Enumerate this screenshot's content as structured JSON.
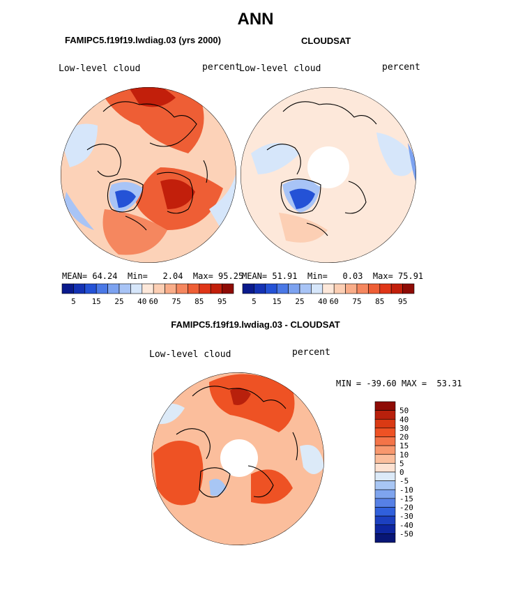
{
  "page": {
    "title": "ANN",
    "left_panel_title": "FAMIPC5.f19f19.lwdiag.03 (yrs 2000)",
    "right_panel_title": "CLOUDSAT",
    "diff_panel_title": "FAMIPC5.f19f19.lwdiag.03 - CLOUDSAT"
  },
  "chart_data": [
    {
      "type": "heatmap",
      "projection": "polar-stereographic-north",
      "title": "FAMIPC5.f19f19.lwdiag.03 (yrs 2000)",
      "left_label": "Low-level cloud",
      "right_label": "percent",
      "stats": {
        "mean_label": "MEAN=",
        "mean": "64.24",
        "min_label": "Min=",
        "min": "2.04",
        "max_label": "Max=",
        "max": "95.25"
      },
      "colorbar": {
        "orientation": "horizontal",
        "tick_labels": [
          "5",
          "15",
          "25",
          "40",
          "60",
          "75",
          "85",
          "95"
        ],
        "colors": [
          "#0a1a8c",
          "#1432b4",
          "#2452d6",
          "#4a78e6",
          "#7ca2f0",
          "#a8c4f6",
          "#d6e6fa",
          "#fde8da",
          "#fccfb4",
          "#f9ad89",
          "#f5875f",
          "#ee5e35",
          "#e03618",
          "#c21f0b",
          "#8e0b05"
        ]
      }
    },
    {
      "type": "heatmap",
      "projection": "polar-stereographic-north",
      "title": "CLOUDSAT",
      "left_label": "Low-level cloud",
      "right_label": "percent",
      "stats": {
        "mean_label": "MEAN=",
        "mean": "51.91",
        "min_label": "Min=",
        "min": "0.03",
        "max_label": "Max=",
        "max": "75.91"
      },
      "colorbar": {
        "orientation": "horizontal",
        "tick_labels": [
          "5",
          "15",
          "25",
          "40",
          "60",
          "75",
          "85",
          "95"
        ],
        "colors": [
          "#0a1a8c",
          "#1432b4",
          "#2452d6",
          "#4a78e6",
          "#7ca2f0",
          "#a8c4f6",
          "#d6e6fa",
          "#fde8da",
          "#fccfb4",
          "#f9ad89",
          "#f5875f",
          "#ee5e35",
          "#e03618",
          "#c21f0b",
          "#8e0b05"
        ]
      }
    },
    {
      "type": "heatmap",
      "projection": "polar-stereographic-north",
      "title": "FAMIPC5.f19f19.lwdiag.03 - CLOUDSAT",
      "left_label": "Low-level cloud",
      "right_label": "percent",
      "stats": {
        "min_label": "MIN =",
        "min": "-39.60",
        "max_label": "MAX =",
        "max": "53.31"
      },
      "colorbar": {
        "orientation": "vertical",
        "tick_labels": [
          "50",
          "40",
          "30",
          "20",
          "15",
          "10",
          "5",
          "0",
          "-5",
          "-10",
          "-15",
          "-20",
          "-30",
          "-40",
          "-50"
        ],
        "colors": [
          "#8e0b05",
          "#b8200c",
          "#da3a14",
          "#ee5224",
          "#f47448",
          "#f8986e",
          "#fbbe9c",
          "#fde2d2",
          "#dceaf8",
          "#a8c6f4",
          "#7ea4ee",
          "#5680e6",
          "#3060dc",
          "#1c40c0",
          "#0e26a0",
          "#081676"
        ]
      }
    }
  ]
}
